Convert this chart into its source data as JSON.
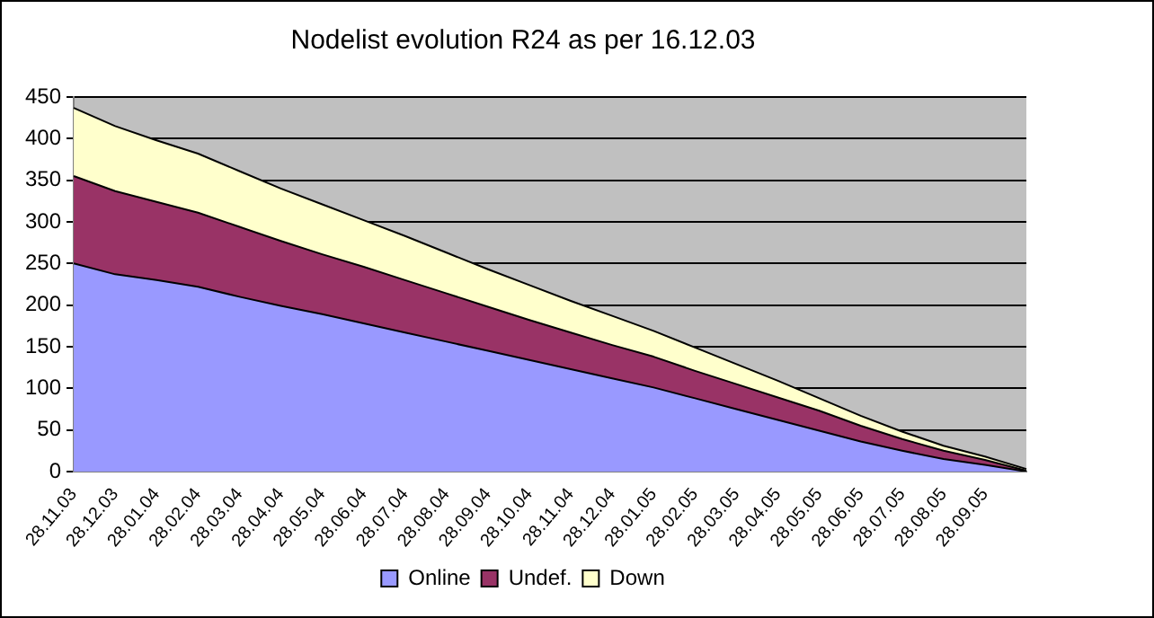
{
  "chart_data": {
    "type": "area",
    "stacked": true,
    "title": "Nodelist evolution R24 as per 16.12.03",
    "categories": [
      "28.11.03",
      "28.12.03",
      "28.01.04",
      "28.02.04",
      "28.03.04",
      "28.04.04",
      "28.05.04",
      "28.06.04",
      "28.07.04",
      "28.08.04",
      "28.09.04",
      "28.10.04",
      "28.11.04",
      "28.12.04",
      "28.01.05",
      "28.02.05",
      "28.03.05",
      "28.04.05",
      "28.05.05",
      "28.06.05",
      "28.07.05",
      "28.08.05",
      "28.09.05",
      null
    ],
    "series": [
      {
        "name": "Online",
        "color": "#9999ff",
        "values": [
          250,
          237,
          230,
          222,
          210,
          199,
          189,
          178,
          167,
          156,
          145,
          134,
          123,
          112,
          101,
          88,
          75,
          62,
          49,
          36,
          25,
          15,
          8,
          0
        ]
      },
      {
        "name": "Undef.",
        "color": "#993366",
        "values": [
          105,
          100,
          94,
          89,
          84,
          78,
          72,
          68,
          63,
          58,
          53,
          48,
          44,
          40,
          37,
          33,
          30,
          27,
          24,
          19,
          14,
          10,
          6,
          1
        ]
      },
      {
        "name": "Down",
        "color": "#ffffcc",
        "values": [
          82,
          78,
          74,
          71,
          67,
          63,
          60,
          56,
          53,
          49,
          45,
          42,
          38,
          35,
          31,
          28,
          24,
          20,
          15,
          12,
          9,
          6,
          4,
          2
        ]
      }
    ],
    "ylim": [
      0,
      450
    ],
    "yticks": [
      0,
      50,
      100,
      150,
      200,
      250,
      300,
      350,
      400,
      450
    ],
    "grid": "y",
    "legend": "bottom"
  }
}
